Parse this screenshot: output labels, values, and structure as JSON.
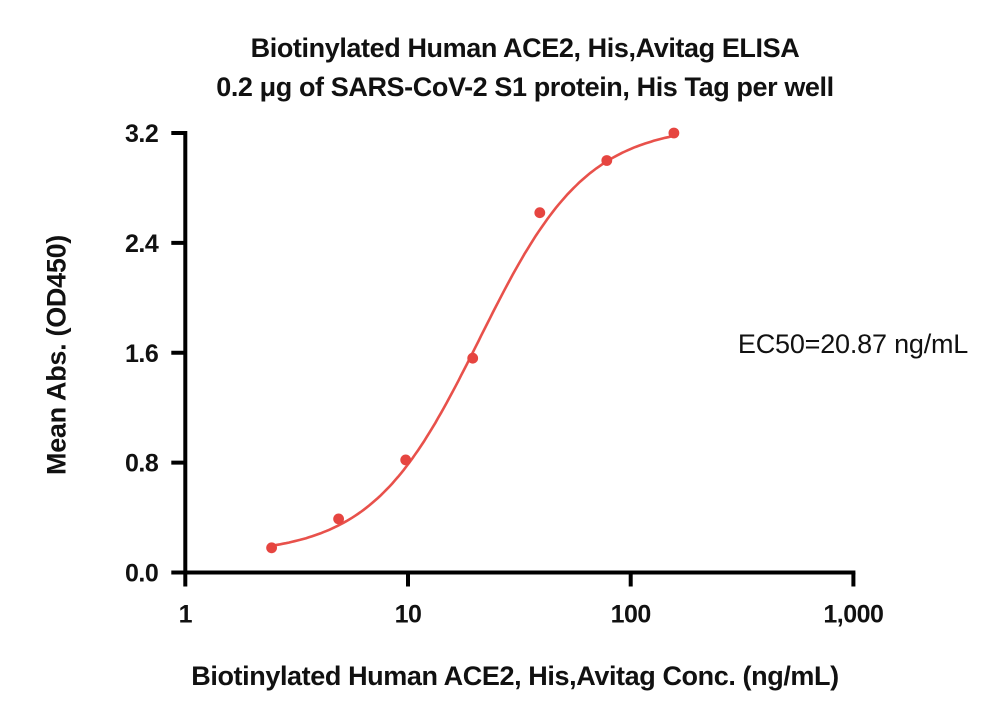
{
  "chart_data": {
    "type": "scatter",
    "title": "Biotinylated Human ACE2, His,Avitag ELISA",
    "subtitle": "0.2 μg of SARS-CoV-2 S1 protein, His Tag per well",
    "xlabel": "Biotinylated Human ACE2, His,Avitag Conc. (ng/mL)",
    "ylabel": "Mean Abs. (OD450)",
    "x_scale": "log10",
    "xlim": [
      1,
      1000
    ],
    "ylim": [
      0,
      3.2
    ],
    "grid": false,
    "legend": "none",
    "x_ticks": [
      {
        "value": 1,
        "label": "1"
      },
      {
        "value": 10,
        "label": "10"
      },
      {
        "value": 100,
        "label": "100"
      },
      {
        "value": 1000,
        "label": "1,000"
      }
    ],
    "y_ticks": [
      {
        "value": 0.0,
        "label": "0.0"
      },
      {
        "value": 0.8,
        "label": "0.8"
      },
      {
        "value": 1.6,
        "label": "1.6"
      },
      {
        "value": 2.4,
        "label": "2.4"
      },
      {
        "value": 3.2,
        "label": "3.2"
      }
    ],
    "points": [
      {
        "x": 2.44,
        "y": 0.18
      },
      {
        "x": 4.88,
        "y": 0.39
      },
      {
        "x": 9.77,
        "y": 0.82
      },
      {
        "x": 19.53,
        "y": 1.56
      },
      {
        "x": 39.06,
        "y": 2.62
      },
      {
        "x": 78.13,
        "y": 3.0
      },
      {
        "x": 156.25,
        "y": 3.2
      }
    ],
    "fit_curve": {
      "model": "4PL",
      "bottom": 0.13,
      "top": 3.26,
      "ec50": 20.87,
      "hill": 1.8,
      "x_start": 2.44,
      "x_end": 156.25
    },
    "annotation": "EC50=20.87 ng/mL",
    "colors": {
      "point": "#e64540",
      "curve": "#e8514b",
      "axis": "#000000"
    }
  }
}
